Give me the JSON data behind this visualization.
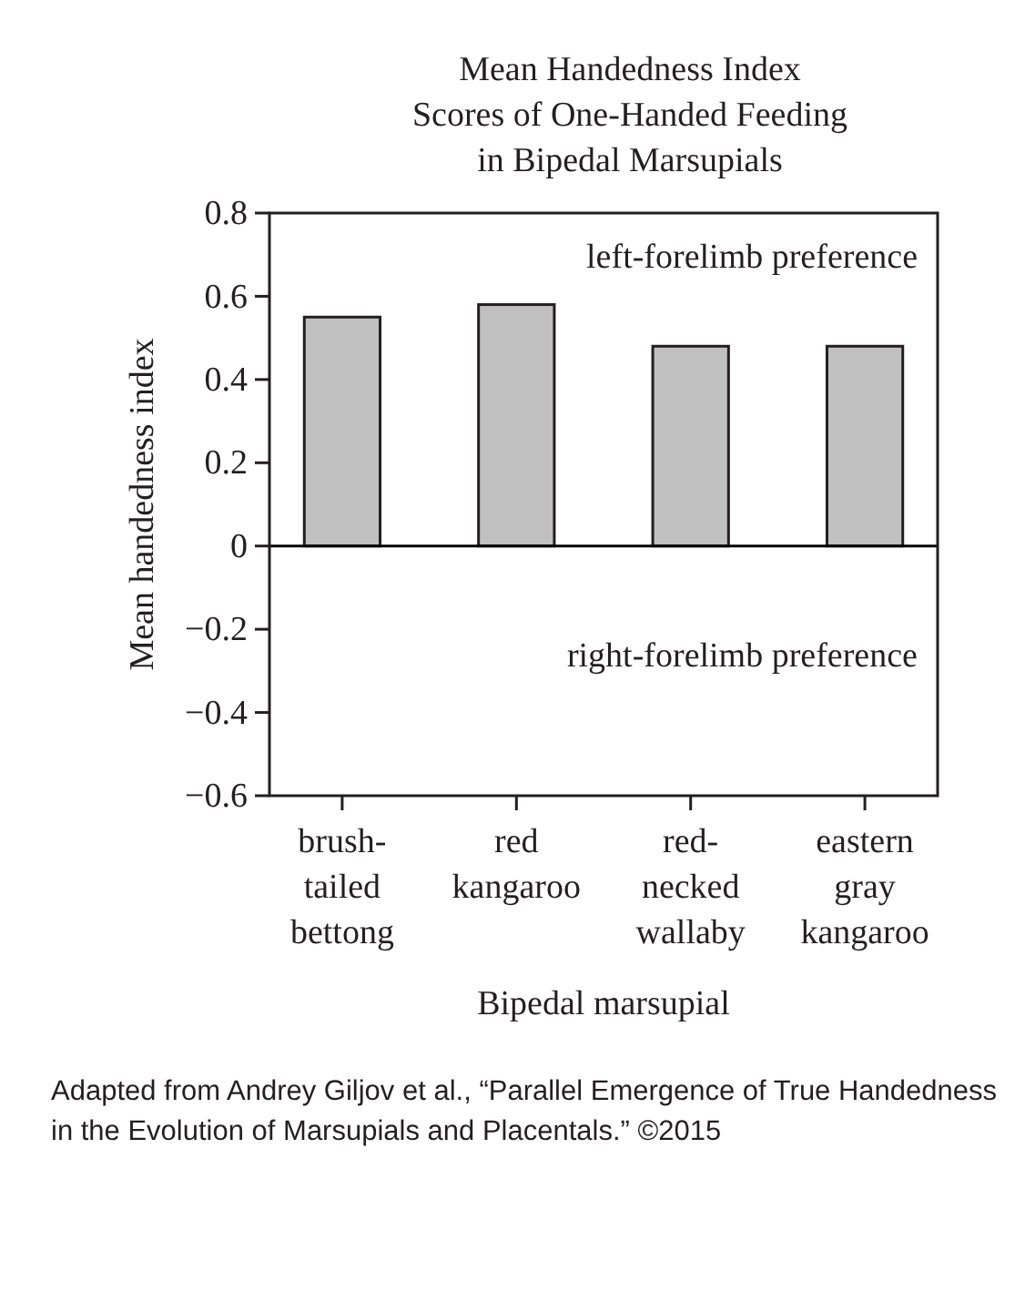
{
  "chart_data": {
    "type": "bar",
    "title": "Mean Handedness Index\nScores of One-Handed Feeding\nin Bipedal Marsupials",
    "xlabel": "Bipedal marsupial",
    "ylabel": "Mean handedness index",
    "categories": [
      "brush-\ntailed\nbettong",
      "red\nkangaroo",
      "red-\nnecked\nwallaby",
      "eastern\ngray\nkangaroo"
    ],
    "values": [
      0.55,
      0.58,
      0.48,
      0.48
    ],
    "color": "#c0c0c0",
    "ylim": [
      -0.6,
      0.8
    ],
    "yticks": [
      {
        "value": -0.6,
        "label": "−0.6"
      },
      {
        "value": -0.4,
        "label": "−0.4"
      },
      {
        "value": -0.2,
        "label": "−0.2"
      },
      0,
      0.2,
      0.4,
      0.6,
      0.8
    ],
    "ref_lines": [
      {
        "axis": "y",
        "value": 0,
        "color": "#000000"
      }
    ],
    "grid": false,
    "annotations": [
      "left-forelimb preference",
      "right-forelimb preference",
      "Adapted from Andrey Giljov et al., “Parallel Emergence of True Handedness in the Evolution of Marsupials and Placentals.” ©2015"
    ]
  }
}
